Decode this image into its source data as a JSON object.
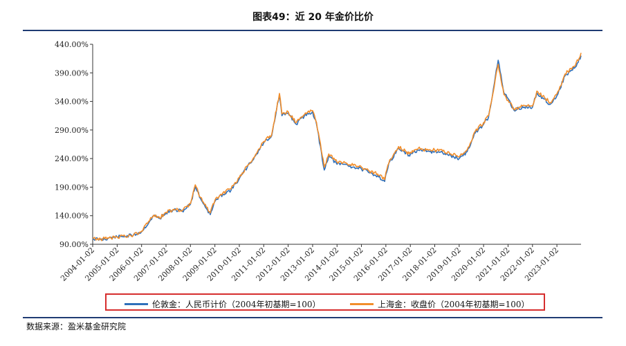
{
  "page": {
    "source": "数据来源：盈米基金研究院"
  },
  "chart_data": {
    "type": "line",
    "title": "图表49：近 20 年金价比价",
    "xlabel": "",
    "ylabel": "",
    "y_tick_labels": [
      "90.00%",
      "140.00%",
      "190.00%",
      "240.00%",
      "290.00%",
      "340.00%",
      "390.00%",
      "440.00%"
    ],
    "ylim": [
      90,
      440
    ],
    "x_range": [
      "2004-01-02",
      "2023-12-29"
    ],
    "x_tick_labels": [
      "2004-01-02",
      "2005-01-02",
      "2006-01-02",
      "2007-01-02",
      "2008-01-02",
      "2009-01-02",
      "2010-01-02",
      "2011-01-02",
      "2012-01-02",
      "2013-01-02",
      "2014-01-02",
      "2015-01-02",
      "2016-01-02",
      "2017-01-02",
      "2018-01-02",
      "2019-01-02",
      "2020-01-02",
      "2021-01-02",
      "2022-01-02",
      "2023-01-02"
    ],
    "grid": false,
    "legend_position": "bottom",
    "colors": {
      "series_1": "#2e6fba",
      "series_2": "#f28e2b",
      "legend_border": "#d62d2d",
      "rule": "#1f3b73"
    },
    "series": [
      {
        "name": "伦敦金：人民币计价（2004年初基期=100）",
        "x": [
          "2004-01-02",
          "2004-05-01",
          "2004-09-01",
          "2005-01-02",
          "2005-05-01",
          "2005-09-01",
          "2006-01-02",
          "2006-05-01",
          "2006-07-01",
          "2006-10-01",
          "2007-01-02",
          "2007-05-01",
          "2007-09-01",
          "2008-01-02",
          "2008-03-15",
          "2008-06-01",
          "2008-10-25",
          "2009-01-02",
          "2009-05-01",
          "2009-09-01",
          "2010-01-02",
          "2010-05-01",
          "2010-09-01",
          "2011-01-02",
          "2011-05-01",
          "2011-08-25",
          "2011-10-01",
          "2012-01-02",
          "2012-05-01",
          "2012-09-01",
          "2013-01-02",
          "2013-03-01",
          "2013-06-25",
          "2013-09-01",
          "2014-01-02",
          "2014-05-01",
          "2014-09-01",
          "2015-01-02",
          "2015-05-01",
          "2015-09-01",
          "2015-12-15",
          "2016-01-02",
          "2016-03-01",
          "2016-07-10",
          "2016-12-15",
          "2017-01-02",
          "2017-05-01",
          "2017-09-01",
          "2018-01-02",
          "2018-05-01",
          "2018-09-01",
          "2019-01-02",
          "2019-05-01",
          "2019-09-01",
          "2020-01-02",
          "2020-03-15",
          "2020-08-07",
          "2020-11-01",
          "2021-01-02",
          "2021-03-30",
          "2021-09-01",
          "2022-01-02",
          "2022-03-08",
          "2022-09-25",
          "2023-01-02",
          "2023-05-04",
          "2023-10-05",
          "2023-12-29"
        ],
        "values": [
          100,
          98,
          101,
          103,
          104,
          106,
          112,
          130,
          140,
          135,
          145,
          150,
          148,
          160,
          192,
          170,
          142,
          165,
          178,
          185,
          205,
          225,
          245,
          268,
          280,
          352,
          315,
          320,
          300,
          315,
          322,
          300,
          220,
          245,
          230,
          230,
          225,
          222,
          215,
          210,
          200,
          212,
          235,
          258,
          245,
          248,
          255,
          252,
          252,
          250,
          245,
          240,
          252,
          285,
          300,
          312,
          412,
          355,
          345,
          325,
          330,
          330,
          355,
          335,
          350,
          385,
          400,
          420
        ]
      },
      {
        "name": "上海金：收盘价（2004年初基期=100）",
        "x": [
          "2004-01-02",
          "2004-05-01",
          "2004-09-01",
          "2005-01-02",
          "2005-05-01",
          "2005-09-01",
          "2006-01-02",
          "2006-05-01",
          "2006-07-01",
          "2006-10-01",
          "2007-01-02",
          "2007-05-01",
          "2007-09-01",
          "2008-01-02",
          "2008-03-15",
          "2008-06-01",
          "2008-10-25",
          "2009-01-02",
          "2009-05-01",
          "2009-09-01",
          "2010-01-02",
          "2010-05-01",
          "2010-09-01",
          "2011-01-02",
          "2011-05-01",
          "2011-08-25",
          "2011-10-01",
          "2012-01-02",
          "2012-05-01",
          "2012-09-01",
          "2013-01-02",
          "2013-03-01",
          "2013-06-25",
          "2013-09-01",
          "2014-01-02",
          "2014-05-01",
          "2014-09-01",
          "2015-01-02",
          "2015-05-01",
          "2015-09-01",
          "2015-12-15",
          "2016-01-02",
          "2016-03-01",
          "2016-07-10",
          "2016-12-15",
          "2017-01-02",
          "2017-05-01",
          "2017-09-01",
          "2018-01-02",
          "2018-05-01",
          "2018-09-01",
          "2019-01-02",
          "2019-05-01",
          "2019-09-01",
          "2020-01-02",
          "2020-03-15",
          "2020-08-07",
          "2020-11-01",
          "2021-01-02",
          "2021-03-30",
          "2021-09-01",
          "2022-01-02",
          "2022-03-08",
          "2022-09-25",
          "2023-01-02",
          "2023-05-04",
          "2023-10-05",
          "2023-12-29"
        ],
        "values": [
          100,
          99,
          101,
          103,
          104,
          106,
          113,
          131,
          141,
          136,
          146,
          151,
          149,
          161,
          194,
          172,
          145,
          167,
          180,
          187,
          207,
          227,
          247,
          270,
          282,
          354,
          318,
          322,
          303,
          317,
          324,
          303,
          225,
          248,
          234,
          233,
          228,
          225,
          218,
          213,
          203,
          215,
          238,
          261,
          248,
          251,
          258,
          255,
          255,
          253,
          248,
          243,
          255,
          288,
          303,
          315,
          405,
          352,
          342,
          327,
          333,
          332,
          358,
          338,
          353,
          388,
          403,
          425
        ]
      }
    ]
  }
}
